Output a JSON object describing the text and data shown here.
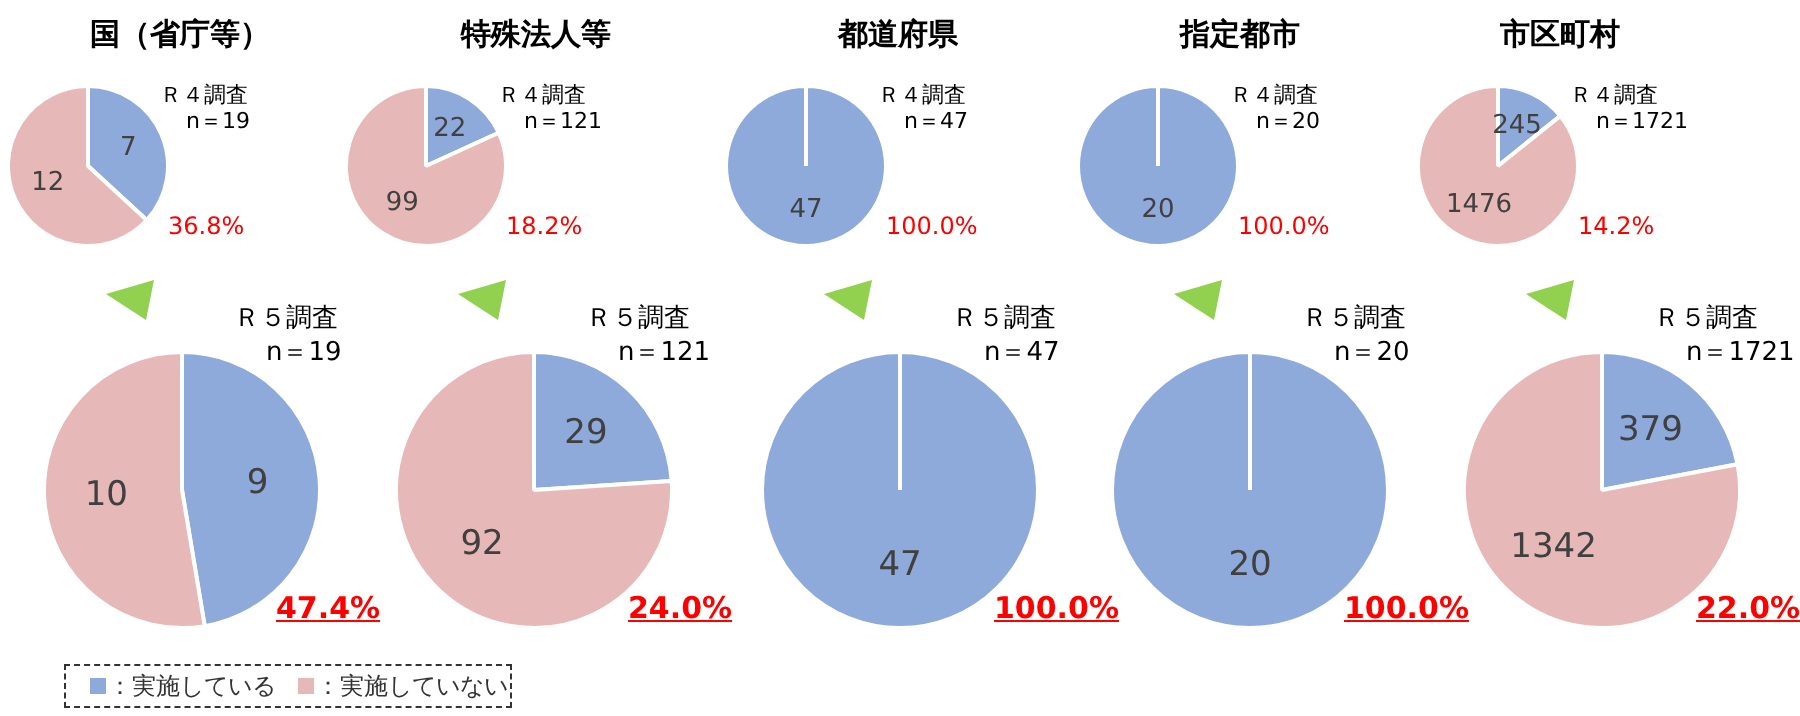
{
  "chart_data": [
    {
      "type": "pie",
      "title": "国（省庁等）",
      "categories": [
        null,
        null
      ],
      "values": [
        7,
        12
      ],
      "colors": [
        "#8eaadb",
        "#e6b8b7"
      ],
      "value_labels": [
        "7",
        "12"
      ],
      "annotations": [
        "Ｒ４調査",
        "n＝19",
        "36.8%"
      ]
    },
    {
      "type": "pie",
      "title": "特殊法人等",
      "categories": [
        null,
        null
      ],
      "values": [
        22,
        99
      ],
      "colors": [
        "#8eaadb",
        "#e6b8b7"
      ],
      "value_labels": [
        "22",
        "99"
      ],
      "annotations": [
        "Ｒ４調査",
        "n＝121",
        "18.2%"
      ]
    },
    {
      "type": "pie",
      "title": "都道府県",
      "categories": [
        null,
        null
      ],
      "values": [
        47,
        0
      ],
      "colors": [
        "#8eaadb",
        "#e6b8b7"
      ],
      "value_labels": [
        "47",
        null
      ],
      "annotations": [
        "Ｒ４調査",
        "n＝47",
        "100.0%"
      ]
    },
    {
      "type": "pie",
      "title": "指定都市",
      "categories": [
        null,
        null
      ],
      "values": [
        20,
        0
      ],
      "colors": [
        "#8eaadb",
        "#e6b8b7"
      ],
      "value_labels": [
        "20",
        null
      ],
      "annotations": [
        "Ｒ４調査",
        "n＝20",
        "100.0%"
      ]
    },
    {
      "type": "pie",
      "title": "市区町村",
      "categories": [
        null,
        null
      ],
      "values": [
        245,
        1476
      ],
      "colors": [
        "#8eaadb",
        "#e6b8b7"
      ],
      "value_labels": [
        "245",
        "1476"
      ],
      "annotations": [
        "Ｒ４調査",
        "n＝1721",
        "14.2%"
      ]
    },
    {
      "type": "pie",
      "categories": [
        "：実施している",
        "：実施していない"
      ],
      "values": [
        9,
        10
      ],
      "colors": [
        "#8eaadb",
        "#e6b8b7"
      ],
      "value_labels": [
        "9",
        "10"
      ],
      "annotations": [
        "Ｒ５調査",
        "n＝19",
        "47.4%"
      ],
      "legend": "bottom"
    },
    {
      "type": "pie",
      "categories": [
        null,
        null
      ],
      "values": [
        29,
        92
      ],
      "colors": [
        "#8eaadb",
        "#e6b8b7"
      ],
      "value_labels": [
        "29",
        "92"
      ],
      "annotations": [
        "Ｒ５調査",
        "n＝121",
        "24.0%"
      ]
    },
    {
      "type": "pie",
      "categories": [
        null,
        null
      ],
      "values": [
        47,
        0
      ],
      "colors": [
        "#8eaadb",
        "#e6b8b7"
      ],
      "value_labels": [
        "47",
        null
      ],
      "annotations": [
        "Ｒ５調査",
        "n＝47",
        "100.0%"
      ]
    },
    {
      "type": "pie",
      "categories": [
        null,
        null
      ],
      "values": [
        20,
        0
      ],
      "colors": [
        "#8eaadb",
        "#e6b8b7"
      ],
      "value_labels": [
        "20",
        null
      ],
      "annotations": [
        "Ｒ５調査",
        "n＝20",
        "100.0%"
      ]
    },
    {
      "type": "pie",
      "categories": [
        null,
        null
      ],
      "values": [
        379,
        1342
      ],
      "colors": [
        "#8eaadb",
        "#e6b8b7"
      ],
      "value_labels": [
        "379",
        "1342"
      ],
      "annotations": [
        "Ｒ５調査",
        "n＝1721",
        "22.0%"
      ]
    }
  ]
}
